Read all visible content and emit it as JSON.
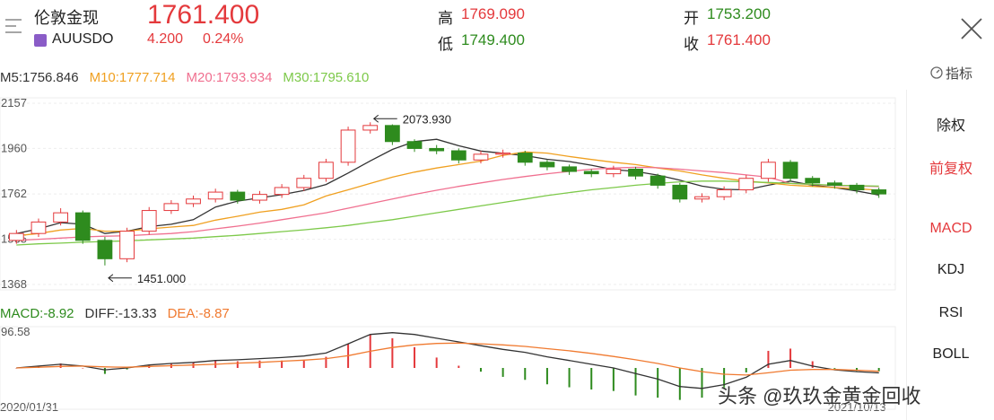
{
  "header": {
    "name": "伦敦金现",
    "price": "1761.400",
    "code": "AUUSDO",
    "change": "4.200",
    "change_pct": "0.24%",
    "high_label": "高",
    "high": "1769.090",
    "low_label": "低",
    "low": "1749.400",
    "open_label": "开",
    "open": "1753.200",
    "close_label": "收",
    "close": "1761.400"
  },
  "indicator_button": "指标",
  "sidebar": [
    "除权",
    "前复权",
    "MACD",
    "KDJ",
    "RSI",
    "BOLL"
  ],
  "watermark": "头条 @玖玖金黄金回收",
  "chart_data": [
    {
      "type": "candlestick",
      "categories": [
        "2020/01/31",
        null,
        null,
        null,
        null,
        null,
        null,
        null,
        null,
        null,
        null,
        null,
        null,
        null,
        null,
        null,
        null,
        null,
        null,
        null,
        null,
        null,
        null,
        null,
        null,
        null,
        null,
        null,
        null,
        null,
        null,
        null,
        null,
        null,
        null,
        null,
        null,
        null,
        null,
        "2021/10/13"
      ],
      "open": [
        1560,
        1590,
        1640,
        1680,
        1560,
        1480,
        1600,
        1690,
        1720,
        1740,
        1770,
        1735,
        1760,
        1790,
        1830,
        1900,
        2040,
        2060,
        1990,
        1960,
        1950,
        1910,
        1935,
        1940,
        1900,
        1880,
        1860,
        1850,
        1870,
        1840,
        1800,
        1740,
        1750,
        1780,
        1830,
        1900,
        1830,
        1810,
        1800,
        1780
      ],
      "close": [
        1590,
        1640,
        1680,
        1560,
        1480,
        1600,
        1690,
        1720,
        1740,
        1770,
        1735,
        1760,
        1790,
        1830,
        1900,
        2040,
        2060,
        1990,
        1960,
        1950,
        1910,
        1935,
        1940,
        1900,
        1880,
        1860,
        1850,
        1870,
        1840,
        1800,
        1740,
        1750,
        1780,
        1830,
        1900,
        1830,
        1810,
        1800,
        1780,
        1762
      ],
      "high": [
        1605,
        1655,
        1700,
        1690,
        1575,
        1615,
        1705,
        1735,
        1755,
        1785,
        1780,
        1775,
        1805,
        1845,
        1915,
        2055,
        2073.93,
        2065,
        2000,
        1975,
        1960,
        1950,
        1955,
        1950,
        1910,
        1890,
        1870,
        1885,
        1880,
        1850,
        1810,
        1765,
        1795,
        1845,
        1915,
        1910,
        1840,
        1820,
        1810,
        1790
      ],
      "low": [
        1545,
        1575,
        1625,
        1545,
        1451,
        1465,
        1585,
        1675,
        1705,
        1725,
        1720,
        1720,
        1745,
        1775,
        1815,
        1885,
        2025,
        1975,
        1945,
        1935,
        1895,
        1895,
        1920,
        1885,
        1865,
        1845,
        1835,
        1835,
        1825,
        1785,
        1725,
        1725,
        1735,
        1765,
        1815,
        1815,
        1795,
        1785,
        1765,
        1745
      ],
      "up_color": "#e4393c",
      "down_color": "#2e8b1e",
      "series": [
        {
          "name": "M5:1756.846",
          "color": "#333333",
          "values": [
            1590,
            1610,
            1637,
            1630,
            1590,
            1600,
            1620,
            1630,
            1650,
            1705,
            1731,
            1745,
            1759,
            1777,
            1803,
            1853,
            1906,
            1956,
            1990,
            2000,
            1972,
            1949,
            1939,
            1929,
            1913,
            1903,
            1887,
            1868,
            1860,
            1844,
            1822,
            1796,
            1782,
            1780,
            1800,
            1818,
            1800,
            1790,
            1775,
            1757
          ]
        },
        {
          "name": "M10:1777.714",
          "color": "#f0a020",
          "values": [
            1580,
            1590,
            1605,
            1612,
            1600,
            1600,
            1610,
            1618,
            1625,
            1648,
            1665,
            1683,
            1695,
            1715,
            1753,
            1780,
            1808,
            1835,
            1857,
            1875,
            1890,
            1905,
            1930,
            1945,
            1940,
            1925,
            1912,
            1900,
            1890,
            1875,
            1862,
            1845,
            1830,
            1818,
            1810,
            1800,
            1795,
            1790,
            1785,
            1778
          ]
        },
        {
          "name": "M20:1793.934",
          "color": "#f07090",
          "values": [
            1560,
            1565,
            1570,
            1575,
            1578,
            1580,
            1585,
            1590,
            1598,
            1610,
            1622,
            1635,
            1650,
            1665,
            1680,
            1700,
            1720,
            1740,
            1760,
            1778,
            1795,
            1810,
            1825,
            1838,
            1850,
            1860,
            1870,
            1875,
            1878,
            1876,
            1870,
            1862,
            1855,
            1845,
            1835,
            1808,
            1803,
            1799,
            1796,
            1794
          ]
        },
        {
          "name": "M30:1795.610",
          "color": "#7dc94a",
          "values": [
            1540,
            1545,
            1548,
            1552,
            1555,
            1558,
            1562,
            1566,
            1570,
            1576,
            1582,
            1590,
            1598,
            1606,
            1615,
            1625,
            1638,
            1650,
            1665,
            1680,
            1695,
            1710,
            1725,
            1740,
            1755,
            1768,
            1780,
            1790,
            1800,
            1808,
            1815,
            1818,
            1818,
            1815,
            1812,
            1808,
            1804,
            1800,
            1798,
            1796
          ]
        }
      ],
      "annotations": [
        "2073.930",
        "1451.000"
      ],
      "ylim": [
        1368,
        2157
      ],
      "yticks": [
        1368,
        1565,
        1762,
        1960,
        2157
      ],
      "grid": true
    },
    {
      "type": "macd",
      "series": [
        {
          "name": "MACD:-8.92",
          "color": "#2e8b1e",
          "up_color": "#e4393c",
          "values": [
            0,
            6,
            12,
            0,
            -16,
            -4,
            8,
            12,
            14,
            20,
            18,
            20,
            20,
            22,
            30,
            64,
            90,
            80,
            56,
            28,
            6,
            -10,
            -24,
            -32,
            -44,
            -52,
            -58,
            -62,
            -74,
            -80,
            -86,
            -80,
            -56,
            -12,
            46,
            52,
            18,
            -2,
            -8,
            -8.92
          ]
        },
        {
          "name": "DIFF:-13.33",
          "color": "#333333",
          "values": [
            0,
            5,
            10,
            5,
            -5,
            0,
            8,
            12,
            15,
            20,
            22,
            25,
            28,
            32,
            40,
            65,
            90,
            95,
            90,
            80,
            70,
            60,
            50,
            42,
            30,
            20,
            10,
            0,
            -15,
            -30,
            -50,
            -55,
            -45,
            -25,
            10,
            20,
            5,
            -5,
            -10,
            -13.33
          ]
        },
        {
          "name": "DEA:-8.87",
          "color": "#f07a30",
          "values": [
            0,
            2,
            4,
            5,
            3,
            2,
            4,
            6,
            8,
            10,
            13,
            15,
            18,
            21,
            25,
            33,
            45,
            55,
            62,
            66,
            67,
            65,
            62,
            58,
            52,
            46,
            39,
            31,
            22,
            12,
            0,
            -10,
            -17,
            -19,
            -13,
            -6,
            -4,
            -4,
            -6,
            -8.87
          ]
        }
      ],
      "ylim": [
        -96.58,
        96.58
      ],
      "yticks": [
        96.58
      ]
    }
  ]
}
